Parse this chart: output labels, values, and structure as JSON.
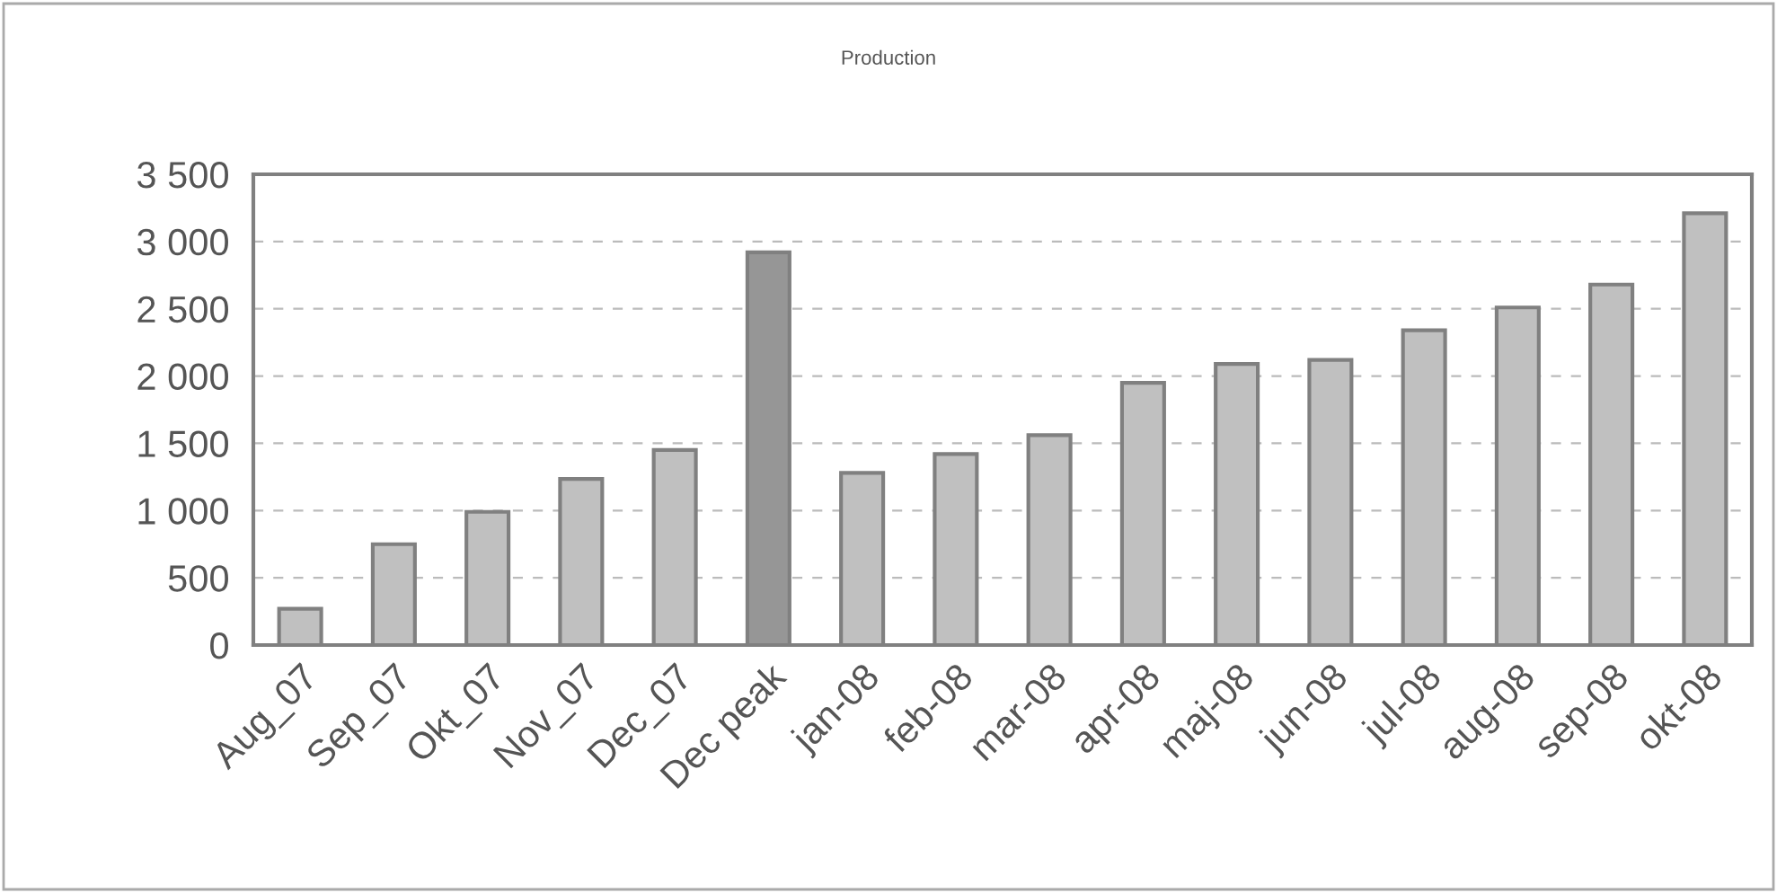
{
  "chart_data": {
    "type": "bar",
    "title": "Production",
    "categories": [
      "Aug_07",
      "Sep_07",
      "Okt_07",
      "Nov_07",
      "Dec_07",
      "Dec peak",
      "jan-08",
      "feb-08",
      "mar-08",
      "apr-08",
      "maj-08",
      "jun-08",
      "jul-08",
      "aug-08",
      "sep-08",
      "okt-08"
    ],
    "values": [
      270,
      750,
      990,
      1235,
      1450,
      2920,
      1280,
      1420,
      1560,
      1950,
      2090,
      2120,
      2340,
      2510,
      2680,
      3210
    ],
    "colors": [
      "#c0c0c0",
      "#c0c0c0",
      "#c0c0c0",
      "#c0c0c0",
      "#c0c0c0",
      "#969696",
      "#c0c0c0",
      "#c0c0c0",
      "#c0c0c0",
      "#c0c0c0",
      "#c0c0c0",
      "#c0c0c0",
      "#c0c0c0",
      "#c0c0c0",
      "#c0c0c0",
      "#c0c0c0"
    ],
    "ylim": [
      0,
      3500
    ],
    "yticks": [
      {
        "value": 0,
        "label": "0"
      },
      {
        "value": 500,
        "label": "500"
      },
      {
        "value": 1000,
        "label": "1 000"
      },
      {
        "value": 1500,
        "label": "1 500"
      },
      {
        "value": 2000,
        "label": "2 000"
      },
      {
        "value": 2500,
        "label": "2 500"
      },
      {
        "value": 3000,
        "label": "3 000"
      },
      {
        "value": 3500,
        "label": "3 500"
      }
    ],
    "grid": "y",
    "line_style": "dashed"
  }
}
